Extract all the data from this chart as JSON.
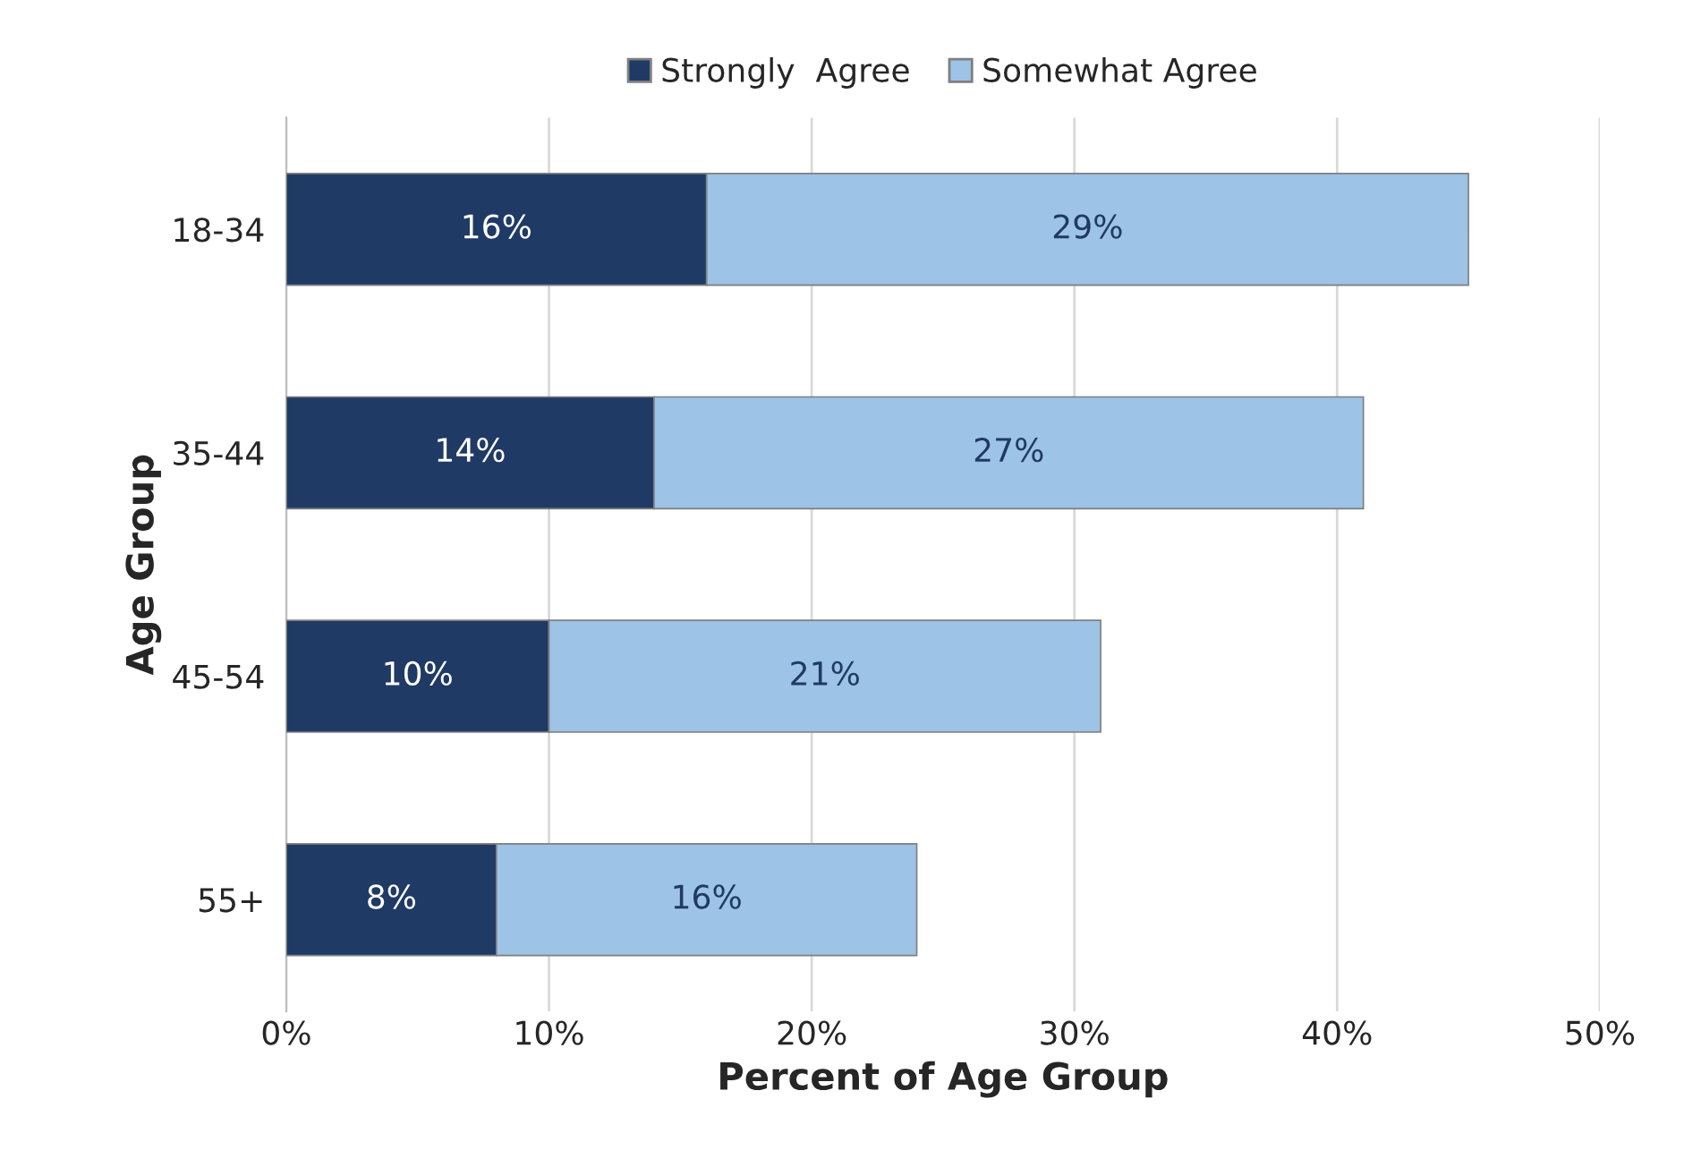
{
  "chart_data": {
    "type": "bar",
    "orientation": "horizontal",
    "stacked": true,
    "xlabel": "Percent of Age Group",
    "ylabel": "Age Group",
    "categories": [
      "18-34",
      "35-44",
      "45-54",
      "55+"
    ],
    "series": [
      {
        "name": "Strongly  Agree",
        "color": "#1f3a64",
        "values": [
          16,
          14,
          10,
          8
        ],
        "value_labels": [
          "16%",
          "14%",
          "10%",
          "8%"
        ]
      },
      {
        "name": "Somewhat Agree",
        "color": "#9dc3e6",
        "values": [
          29,
          27,
          21,
          16
        ],
        "value_labels": [
          "29%",
          "27%",
          "21%",
          "16%"
        ]
      }
    ],
    "xlim": [
      0,
      50
    ],
    "xticks": [
      {
        "value": 0,
        "label": "0%"
      },
      {
        "value": 10,
        "label": "10%"
      },
      {
        "value": 20,
        "label": "20%"
      },
      {
        "value": 30,
        "label": "30%"
      },
      {
        "value": 40,
        "label": "40%"
      },
      {
        "value": 50,
        "label": "50%"
      }
    ],
    "grid": "x",
    "legend": "top"
  }
}
